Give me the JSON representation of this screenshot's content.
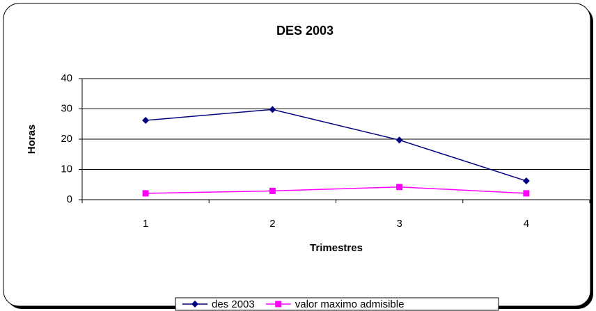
{
  "chart_data": {
    "type": "line",
    "title": "DES 2003",
    "x_label": "Trimestres",
    "y_label": "Horas",
    "categories": [
      "1",
      "2",
      "3",
      "4"
    ],
    "series": [
      {
        "name": "des 2003",
        "color": "#000080",
        "marker": "diamond",
        "values": [
          26.2,
          29.8,
          19.7,
          6.2
        ]
      },
      {
        "name": "valor maximo admisible",
        "color": "#ff00ff",
        "marker": "square",
        "values": [
          2.1,
          2.9,
          4.2,
          2.1
        ]
      }
    ],
    "ylim": [
      0,
      40
    ],
    "yticks": [
      0,
      10,
      20,
      30,
      40
    ],
    "grid": true,
    "legend": "bottom"
  }
}
